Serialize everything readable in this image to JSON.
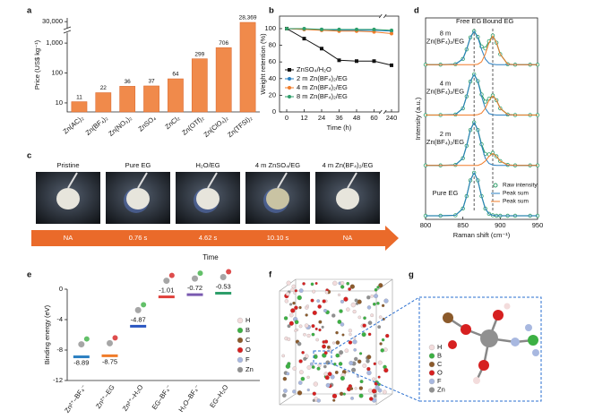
{
  "chart_data": [
    {
      "panel": "a",
      "type": "bar",
      "y_label": "Price (US$ kg⁻¹)",
      "categories": [
        "Zn(AC)₂",
        "Zn(BF₄)₂",
        "Zn(NO₃)₂",
        "ZnSO₄",
        "ZnCl₂",
        "Zn(OTf)₂",
        "Zn(ClO₄)₂",
        "Zn(TFSI)₂"
      ],
      "values": [
        11,
        22,
        36,
        37,
        64,
        299,
        706,
        28369
      ],
      "value_labels": [
        "11",
        "22",
        "36",
        "37",
        "64",
        "299",
        "706",
        "28,369"
      ],
      "color": "#f08a4b",
      "log_scale": true,
      "ylim": [
        5,
        40000
      ],
      "axis_break": [
        2000,
        20000
      ],
      "yticks": [
        10,
        100,
        {
          "value": 1000,
          "label": "1,000"
        },
        {
          "value": 30000,
          "label": "30,000"
        }
      ]
    },
    {
      "panel": "b",
      "type": "line",
      "x_label": "Time (h)",
      "y_label": "Weight retention (%)",
      "categories": [
        0,
        12,
        24,
        36,
        48,
        60,
        240
      ],
      "x_break": [
        60,
        240
      ],
      "ylim": [
        0,
        115
      ],
      "yticks": [
        0,
        20,
        40,
        60,
        80,
        100
      ],
      "legend": "left",
      "series": [
        {
          "name": "ZnSO₄/H₂O",
          "color": "#111111",
          "marker": "square",
          "values": [
            100,
            88,
            76,
            62,
            61,
            61,
            56
          ]
        },
        {
          "name": "2 m Zn(BF₄)₂/EG",
          "color": "#2a7fc1",
          "marker": "circle",
          "values": [
            100,
            99,
            99,
            98,
            98,
            98,
            97
          ]
        },
        {
          "name": "4 m Zn(BF₄)₂/EG",
          "color": "#f07c2a",
          "marker": "circle",
          "values": [
            100,
            99,
            98,
            97,
            97,
            96,
            94
          ]
        },
        {
          "name": "8 m Zn(BF₄)₂/EG",
          "color": "#2e9e6a",
          "marker": "circle",
          "values": [
            100,
            100,
            99,
            99,
            99,
            99,
            98
          ]
        }
      ]
    },
    {
      "panel": "d",
      "type": "spectra",
      "x_label": "Raman shift (cm⁻¹)",
      "y_label": "Intensity (a.u.)",
      "xlim": [
        800,
        950
      ],
      "xticks": [
        800,
        850,
        900,
        950
      ],
      "annotations": [
        {
          "text": "Free EG",
          "x": 865
        },
        {
          "text": "Bound EG",
          "x": 890
        }
      ],
      "legend": [
        {
          "name": "Raw intensity",
          "color": "#2e9e6a"
        },
        {
          "name": "Peak sum",
          "color": "#2a7fc1"
        },
        {
          "name": "Peak sum",
          "color": "#f07c2a"
        }
      ],
      "x": [
        800,
        820,
        840,
        850,
        855,
        860,
        865,
        870,
        875,
        880,
        885,
        890,
        895,
        900,
        910,
        920,
        940,
        950
      ],
      "groups": [
        {
          "label": [
            "8 m",
            "Zn(BF₄)₂/EG"
          ],
          "series": [
            {
              "values": [
                0,
                0,
                0.01,
                0.12,
                0.32,
                0.57,
                0.7,
                0.58,
                0.38,
                0.34,
                0.49,
                0.61,
                0.46,
                0.22,
                0.01,
                0,
                0,
                0
              ]
            },
            {
              "values": [
                0,
                0,
                0.01,
                0.12,
                0.32,
                0.57,
                0.7,
                0.57,
                0.32,
                0.12,
                0.03,
                0.01,
                0,
                0,
                0,
                0,
                0,
                0
              ]
            },
            {
              "values": [
                0,
                0,
                0,
                0,
                0,
                0,
                0,
                0.01,
                0.06,
                0.22,
                0.46,
                0.6,
                0.46,
                0.22,
                0.01,
                0,
                0,
                0
              ]
            }
          ]
        },
        {
          "label": [
            "4 m",
            "Zn(BF₄)₂/EG"
          ],
          "series": [
            {
              "values": [
                0,
                0,
                0.01,
                0.14,
                0.39,
                0.7,
                0.85,
                0.71,
                0.43,
                0.28,
                0.34,
                0.41,
                0.31,
                0.14,
                0.01,
                0,
                0,
                0
              ]
            },
            {
              "values": [
                0,
                0,
                0.01,
                0.14,
                0.39,
                0.7,
                0.85,
                0.7,
                0.39,
                0.14,
                0.03,
                0.01,
                0,
                0,
                0,
                0,
                0,
                0
              ]
            },
            {
              "values": [
                0,
                0,
                0,
                0,
                0,
                0,
                0,
                0.01,
                0.04,
                0.14,
                0.31,
                0.4,
                0.31,
                0.14,
                0.01,
                0,
                0,
                0
              ]
            }
          ]
        },
        {
          "label": [
            "2 m",
            "Zn(BF₄)₂/EG"
          ],
          "series": [
            {
              "values": [
                0,
                0,
                0.01,
                0.15,
                0.41,
                0.74,
                0.9,
                0.74,
                0.44,
                0.24,
                0.23,
                0.26,
                0.19,
                0.09,
                0.01,
                0,
                0,
                0
              ]
            },
            {
              "values": [
                0,
                0,
                0.01,
                0.15,
                0.41,
                0.74,
                0.9,
                0.74,
                0.41,
                0.15,
                0.04,
                0.01,
                0,
                0,
                0,
                0,
                0,
                0
              ]
            },
            {
              "values": [
                0,
                0,
                0,
                0,
                0,
                0,
                0,
                0,
                0.03,
                0.09,
                0.19,
                0.25,
                0.19,
                0.09,
                0.01,
                0,
                0,
                0
              ]
            }
          ]
        },
        {
          "label": [
            "Pure EG"
          ],
          "series": [
            {
              "values": [
                0,
                0,
                0.01,
                0.15,
                0.41,
                0.74,
                0.9,
                0.74,
                0.41,
                0.15,
                0.04,
                0.01,
                0,
                0,
                0,
                0,
                0,
                0
              ]
            },
            {
              "values": [
                0,
                0,
                0.01,
                0.15,
                0.41,
                0.74,
                0.9,
                0.74,
                0.41,
                0.15,
                0.04,
                0.01,
                0,
                0,
                0,
                0,
                0,
                0
              ]
            }
          ]
        }
      ]
    },
    {
      "panel": "e",
      "type": "level",
      "y_label": "Binding energy (eV)",
      "categories": [
        "Zn²⁺–BF₄⁻",
        "Zn²⁺–EG",
        "Zn²⁺–H₂O",
        "EG–BF₄⁻",
        "H₂O–BF₄⁻",
        "EG–H₂O"
      ],
      "values": [
        -8.89,
        -8.75,
        -4.87,
        -1.01,
        -0.72,
        -0.53
      ],
      "colors": [
        "#2a7fc1",
        "#f07c2a",
        "#2a56c1",
        "#e0403a",
        "#7a5ab0",
        "#2e9e6a"
      ],
      "ylim": [
        -12,
        0
      ],
      "yticks": [
        -12,
        -8,
        -4,
        0
      ],
      "atoms": [
        {
          "name": "H",
          "color": "#f3dcdc"
        },
        {
          "name": "B",
          "color": "#3cb043"
        },
        {
          "name": "C",
          "color": "#8b5a2b"
        },
        {
          "name": "O",
          "color": "#d62020"
        },
        {
          "name": "F",
          "color": "#a8b8e0"
        },
        {
          "name": "Zn",
          "color": "#909090"
        }
      ]
    }
  ],
  "panel_c": {
    "panel": "c",
    "labels": [
      "Pristine",
      "Pure EG",
      "H₂O/EG",
      "4 m ZnSO₄/EG",
      "4 m Zn(BF₄)₂/EG"
    ],
    "times": [
      "NA",
      "0.76 s",
      "4.62 s",
      "10.10 s",
      "NA"
    ],
    "axis_label": "Time",
    "color": "#ea6a2a"
  },
  "panel_f": {
    "panel": "f"
  },
  "panel_g": {
    "panel": "g",
    "atoms": [
      {
        "name": "H",
        "color": "#f3dcdc"
      },
      {
        "name": "B",
        "color": "#3cb043"
      },
      {
        "name": "C",
        "color": "#8b5a2b"
      },
      {
        "name": "O",
        "color": "#d62020"
      },
      {
        "name": "F",
        "color": "#a8b8e0"
      },
      {
        "name": "Zn",
        "color": "#909090"
      }
    ]
  }
}
